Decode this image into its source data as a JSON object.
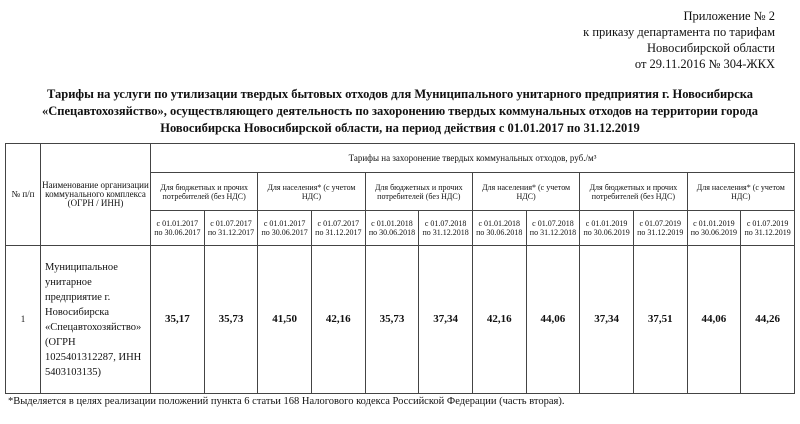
{
  "header": {
    "lines": [
      "Приложение № 2",
      "к приказу департамента по тарифам",
      "Новосибирской области",
      "от 29.11.2016 № 304-ЖКХ"
    ]
  },
  "title": {
    "lines": [
      "Тарифы на услуги по утилизации твердых бытовых отходов для Муниципального унитарного предприятия г. Новосибирска",
      "«Спецавтохозяйство», осуществляющего деятельность по захоронению твердых коммунальных отходов на территории города",
      "Новосибирска Новосибирской области, на период действия с 01.01.2017 по 31.12.2019"
    ]
  },
  "table": {
    "col_number": "№ п/п",
    "col_name": "Наименование организации коммунального комплекса (ОГРН / ИНН)",
    "col_tariffs": "Тарифы на захоронение твердых коммунальных отходов, руб./м³",
    "groups": [
      "Для бюджетных и прочих потребителей (без НДС)",
      "Для населения* (с учетом НДС)",
      "Для бюджетных и прочих потребителей (без НДС)",
      "Для населения* (с учетом НДС)",
      "Для бюджетных и прочих потребителей (без НДС)",
      "Для населения* (с учетом НДС)"
    ],
    "periods": [
      "с 01.01.2017 по 30.06.2017",
      "с 01.07.2017 по 31.12.2017",
      "с 01.01.2017 по 30.06.2017",
      "с 01.07.2017 по 31.12.2017",
      "с 01.01.2018 по 30.06.2018",
      "с 01.07.2018 по 31.12.2018",
      "с 01.01.2018 по 30.06.2018",
      "с 01.07.2018 по 31.12.2018",
      "с 01.01.2019 по 30.06.2019",
      "с 01.07.2019 по 31.12.2019",
      "с 01.01.2019 по 30.06.2019",
      "с 01.07.2019 по 31.12.2019"
    ],
    "rows": [
      [
        "1",
        "Муниципальное унитарное предприятие г. Новосибирска «Спецавтохозяйство» (ОГРН 1025401312287, ИНН 5403103135)",
        "35,17",
        "35,73",
        "41,50",
        "42,16",
        "35,73",
        "37,34",
        "42,16",
        "44,06",
        "37,34",
        "37,51",
        "44,06",
        "44,26"
      ]
    ]
  },
  "footnote": "*Выделяется в целях реализации положений пункта 6 статьи 168 Налогового кодекса Российской Федерации (часть вторая)."
}
